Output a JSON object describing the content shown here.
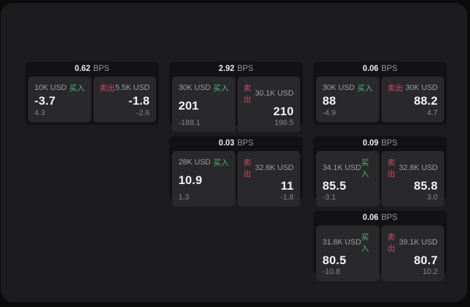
{
  "labels": {
    "bps_unit": "BPS",
    "buy": "买入",
    "sell": "卖出"
  },
  "colors": {
    "outer_background": "#0b0b0c",
    "panel_background": "#1c1c1e",
    "card_background": "#121214",
    "pane_background": "#29292c",
    "buy_accent": "#57b877",
    "sell_accent": "#c84a67",
    "primary_text": "#f4f4f5",
    "muted_text": "#97979a"
  },
  "cards": [
    {
      "bps": "0.62",
      "buy": {
        "amount": "10K USD",
        "price": "-3.7",
        "delta": "4.3"
      },
      "sell": {
        "amount": "5.5K USD",
        "price": "-1.8",
        "delta": "-2.6"
      }
    },
    {
      "bps": "2.92",
      "buy": {
        "amount": "30K USD",
        "price": "201",
        "delta": "-188.1"
      },
      "sell": {
        "amount": "30.1K USD",
        "price": "210",
        "delta": "196.5"
      }
    },
    {
      "bps": "0.06",
      "buy": {
        "amount": "30K USD",
        "price": "88",
        "delta": "-4.9"
      },
      "sell": {
        "amount": "30K USD",
        "price": "88.2",
        "delta": "4.7"
      }
    },
    {
      "bps": "0.03",
      "buy": {
        "amount": "28K USD",
        "price": "10.9",
        "delta": "1.3"
      },
      "sell": {
        "amount": "32.6K USD",
        "price": "11",
        "delta": "-1.8"
      }
    },
    {
      "bps": "0.09",
      "buy": {
        "amount": "34.1K USD",
        "price": "85.5",
        "delta": "-3.1"
      },
      "sell": {
        "amount": "32.8K USD",
        "price": "85.8",
        "delta": "3.0"
      }
    },
    {
      "bps": "0.06",
      "buy": {
        "amount": "31.8K USD",
        "price": "80.5",
        "delta": "-10.8"
      },
      "sell": {
        "amount": "39.1K USD",
        "price": "80.7",
        "delta": "10.2"
      }
    }
  ]
}
